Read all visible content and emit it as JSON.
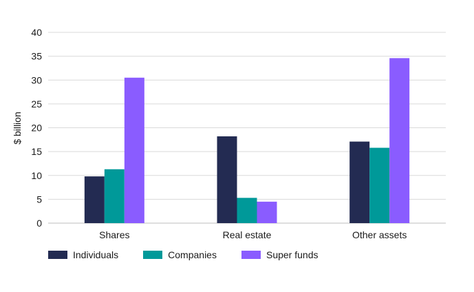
{
  "chart_data": {
    "type": "bar",
    "ylabel": "$ billion",
    "ylim": [
      0,
      40
    ],
    "yticks": [
      0,
      5,
      10,
      15,
      20,
      25,
      30,
      35,
      40
    ],
    "grid": true,
    "legend_position": "bottom-left",
    "categories": [
      "Shares",
      "Real estate",
      "Other assets"
    ],
    "series": [
      {
        "name": "Individuals",
        "color": "#232b52",
        "values": [
          9.8,
          18.2,
          17.1
        ]
      },
      {
        "name": "Companies",
        "color": "#009999",
        "values": [
          11.3,
          5.3,
          15.8
        ]
      },
      {
        "name": "Super funds",
        "color": "#8a5cff",
        "values": [
          30.5,
          4.5,
          34.6
        ]
      }
    ]
  }
}
